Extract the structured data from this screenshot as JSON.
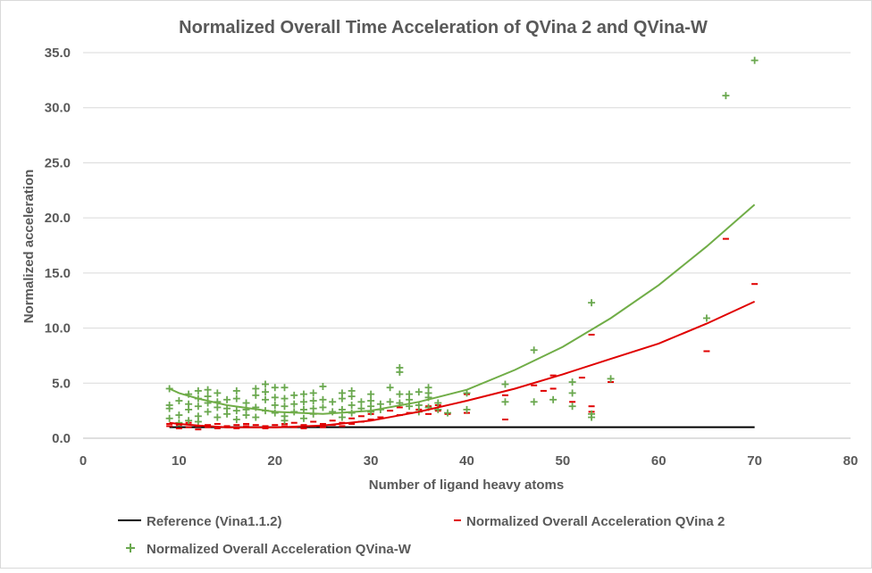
{
  "chart_data": {
    "type": "scatter",
    "title": "Normalized Overall Time Acceleration of QVina 2 and QVina-W",
    "xlabel": "Number of ligand heavy atoms",
    "ylabel": "Normalized acceleration",
    "xlim": [
      0,
      80
    ],
    "ylim": [
      0,
      35
    ],
    "x_ticks": [
      0,
      10,
      20,
      30,
      40,
      50,
      60,
      70,
      80
    ],
    "y_ticks": [
      0,
      5,
      10,
      15,
      20,
      25,
      30,
      35
    ],
    "x_tick_labels": [
      "0",
      "10",
      "20",
      "30",
      "40",
      "50",
      "60",
      "70",
      "80"
    ],
    "y_tick_labels": [
      "0.0",
      "5.0",
      "10.0",
      "15.0",
      "20.0",
      "25.0",
      "30.0",
      "35.0"
    ],
    "grid": "horizontal",
    "legend_position": "bottom",
    "series": [
      {
        "name": "Reference (Vina1.1.2)",
        "kind": "line",
        "color": "#000000",
        "points": [
          [
            9,
            1.0
          ],
          [
            70,
            1.0
          ]
        ]
      },
      {
        "name": "Normalized Overall Acceleration QVina 2",
        "kind": "scatter",
        "marker": "dash",
        "color": "#e00000",
        "points": [
          [
            9,
            1.1
          ],
          [
            9,
            1.3
          ],
          [
            10,
            0.9
          ],
          [
            10,
            1.2
          ],
          [
            11,
            1.0
          ],
          [
            11,
            1.4
          ],
          [
            12,
            1.1
          ],
          [
            12,
            0.8
          ],
          [
            13,
            1.2
          ],
          [
            13,
            1.0
          ],
          [
            14,
            0.9
          ],
          [
            14,
            1.3
          ],
          [
            15,
            1.1
          ],
          [
            15,
            1.0
          ],
          [
            16,
            1.2
          ],
          [
            16,
            0.9
          ],
          [
            17,
            1.1
          ],
          [
            17,
            1.3
          ],
          [
            18,
            1.0
          ],
          [
            18,
            1.2
          ],
          [
            19,
            0.9
          ],
          [
            19,
            1.1
          ],
          [
            20,
            1.2
          ],
          [
            20,
            1.0
          ],
          [
            21,
            1.3
          ],
          [
            21,
            1.1
          ],
          [
            22,
            1.0
          ],
          [
            22,
            1.4
          ],
          [
            23,
            1.2
          ],
          [
            23,
            0.9
          ],
          [
            24,
            1.1
          ],
          [
            24,
            1.5
          ],
          [
            25,
            1.3
          ],
          [
            25,
            1.0
          ],
          [
            26,
            1.2
          ],
          [
            26,
            1.6
          ],
          [
            27,
            1.4
          ],
          [
            27,
            1.1
          ],
          [
            28,
            1.3
          ],
          [
            28,
            1.8
          ],
          [
            29,
            1.5
          ],
          [
            29,
            2.0
          ],
          [
            30,
            1.7
          ],
          [
            30,
            2.2
          ],
          [
            31,
            1.9
          ],
          [
            32,
            2.5
          ],
          [
            33,
            2.1
          ],
          [
            33,
            2.8
          ],
          [
            34,
            2.3
          ],
          [
            35,
            2.6
          ],
          [
            36,
            2.9
          ],
          [
            36,
            2.2
          ],
          [
            37,
            3.0
          ],
          [
            37,
            2.5
          ],
          [
            38,
            2.2
          ],
          [
            40,
            4.0
          ],
          [
            40,
            2.3
          ],
          [
            44,
            3.9
          ],
          [
            44,
            1.7
          ],
          [
            47,
            4.8
          ],
          [
            48,
            4.3
          ],
          [
            49,
            5.7
          ],
          [
            49,
            4.5
          ],
          [
            51,
            3.3
          ],
          [
            52,
            5.5
          ],
          [
            53,
            9.4
          ],
          [
            53,
            2.9
          ],
          [
            53,
            2.4
          ],
          [
            55,
            5.1
          ],
          [
            65,
            7.9
          ],
          [
            67,
            18.1
          ],
          [
            70,
            14.0
          ]
        ]
      },
      {
        "name": "Normalized Overall Acceleration QVina-W",
        "kind": "scatter",
        "marker": "plus",
        "color": "#6aa84f",
        "points": [
          [
            9,
            4.5
          ],
          [
            9,
            3.0
          ],
          [
            9,
            1.8
          ],
          [
            9,
            2.7
          ],
          [
            10,
            3.4
          ],
          [
            10,
            2.1
          ],
          [
            10,
            1.4
          ],
          [
            11,
            4.0
          ],
          [
            11,
            3.1
          ],
          [
            11,
            2.6
          ],
          [
            11,
            1.6
          ],
          [
            12,
            4.3
          ],
          [
            12,
            3.6
          ],
          [
            12,
            2.9
          ],
          [
            12,
            2.0
          ],
          [
            12,
            1.5
          ],
          [
            13,
            4.4
          ],
          [
            13,
            3.8
          ],
          [
            13,
            3.2
          ],
          [
            13,
            2.4
          ],
          [
            14,
            4.1
          ],
          [
            14,
            3.3
          ],
          [
            14,
            2.8
          ],
          [
            14,
            1.9
          ],
          [
            15,
            3.5
          ],
          [
            15,
            2.7
          ],
          [
            15,
            2.2
          ],
          [
            16,
            4.3
          ],
          [
            16,
            3.6
          ],
          [
            16,
            2.5
          ],
          [
            16,
            1.7
          ],
          [
            17,
            3.2
          ],
          [
            17,
            2.6
          ],
          [
            17,
            2.1
          ],
          [
            18,
            4.5
          ],
          [
            18,
            3.9
          ],
          [
            18,
            2.8
          ],
          [
            18,
            1.9
          ],
          [
            19,
            4.9
          ],
          [
            19,
            4.2
          ],
          [
            19,
            3.5
          ],
          [
            19,
            2.5
          ],
          [
            20,
            4.6
          ],
          [
            20,
            3.7
          ],
          [
            20,
            3.0
          ],
          [
            20,
            2.3
          ],
          [
            21,
            4.6
          ],
          [
            21,
            3.6
          ],
          [
            21,
            2.9
          ],
          [
            21,
            2.0
          ],
          [
            21,
            1.6
          ],
          [
            22,
            3.9
          ],
          [
            22,
            3.1
          ],
          [
            22,
            2.4
          ],
          [
            23,
            4.0
          ],
          [
            23,
            3.3
          ],
          [
            23,
            2.6
          ],
          [
            23,
            1.8
          ],
          [
            24,
            4.1
          ],
          [
            24,
            3.4
          ],
          [
            24,
            2.7
          ],
          [
            24,
            2.2
          ],
          [
            25,
            4.7
          ],
          [
            25,
            3.5
          ],
          [
            25,
            2.8
          ],
          [
            26,
            3.3
          ],
          [
            26,
            2.4
          ],
          [
            27,
            4.1
          ],
          [
            27,
            3.6
          ],
          [
            27,
            2.6
          ],
          [
            27,
            1.9
          ],
          [
            28,
            4.3
          ],
          [
            28,
            3.8
          ],
          [
            28,
            3.0
          ],
          [
            28,
            2.3
          ],
          [
            29,
            3.3
          ],
          [
            29,
            2.7
          ],
          [
            30,
            4.0
          ],
          [
            30,
            3.4
          ],
          [
            30,
            2.9
          ],
          [
            30,
            2.4
          ],
          [
            31,
            3.1
          ],
          [
            31,
            2.6
          ],
          [
            32,
            4.6
          ],
          [
            32,
            3.3
          ],
          [
            33,
            6.4
          ],
          [
            33,
            6.0
          ],
          [
            33,
            4.0
          ],
          [
            33,
            3.2
          ],
          [
            34,
            4.0
          ],
          [
            34,
            3.5
          ],
          [
            34,
            2.9
          ],
          [
            35,
            4.2
          ],
          [
            35,
            3.0
          ],
          [
            35,
            2.4
          ],
          [
            36,
            4.6
          ],
          [
            36,
            4.1
          ],
          [
            36,
            3.7
          ],
          [
            36,
            2.8
          ],
          [
            37,
            3.2
          ],
          [
            37,
            2.6
          ],
          [
            38,
            2.3
          ],
          [
            40,
            4.1
          ],
          [
            40,
            2.6
          ],
          [
            44,
            4.9
          ],
          [
            44,
            3.3
          ],
          [
            47,
            8.0
          ],
          [
            47,
            3.3
          ],
          [
            49,
            3.5
          ],
          [
            51,
            5.1
          ],
          [
            51,
            4.1
          ],
          [
            51,
            2.9
          ],
          [
            53,
            12.3
          ],
          [
            53,
            2.2
          ],
          [
            53,
            1.9
          ],
          [
            55,
            5.4
          ],
          [
            65,
            10.9
          ],
          [
            67,
            31.1
          ],
          [
            70,
            34.3
          ]
        ]
      }
    ],
    "trendlines": [
      {
        "series": "Normalized Overall Acceleration QVina 2",
        "color": "#e00000",
        "points": [
          [
            9,
            1.4
          ],
          [
            10,
            1.3
          ],
          [
            12,
            1.15
          ],
          [
            15,
            1.0
          ],
          [
            20,
            0.98
          ],
          [
            25,
            1.15
          ],
          [
            30,
            1.6
          ],
          [
            35,
            2.4
          ],
          [
            40,
            3.4
          ],
          [
            45,
            4.5
          ],
          [
            50,
            5.8
          ],
          [
            55,
            7.2
          ],
          [
            60,
            8.6
          ],
          [
            65,
            10.4
          ],
          [
            70,
            12.4
          ]
        ]
      },
      {
        "series": "Normalized Overall Acceleration QVina-W",
        "color": "#70ad47",
        "points": [
          [
            9,
            4.5
          ],
          [
            10,
            4.1
          ],
          [
            12,
            3.6
          ],
          [
            15,
            3.0
          ],
          [
            20,
            2.4
          ],
          [
            25,
            2.2
          ],
          [
            30,
            2.5
          ],
          [
            35,
            3.3
          ],
          [
            40,
            4.4
          ],
          [
            45,
            6.2
          ],
          [
            50,
            8.3
          ],
          [
            55,
            10.9
          ],
          [
            60,
            13.9
          ],
          [
            65,
            17.4
          ],
          [
            70,
            21.2
          ]
        ]
      }
    ]
  }
}
